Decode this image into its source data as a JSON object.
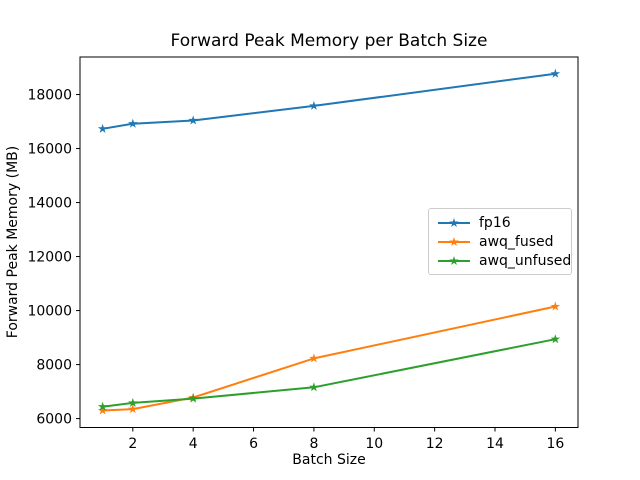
{
  "chart_data": {
    "type": "line",
    "title": "Forward Peak Memory per Batch Size",
    "xlabel": "Batch Size",
    "ylabel": "Forward Peak Memory (MB)",
    "x": [
      1,
      2,
      4,
      8,
      16
    ],
    "series": [
      {
        "name": "fp16",
        "color": "#1f77b4",
        "marker": "star",
        "values": [
          16730,
          16920,
          17040,
          17580,
          18770
        ]
      },
      {
        "name": "awq_fused",
        "color": "#ff7f0e",
        "marker": "star",
        "values": [
          6300,
          6350,
          6780,
          8230,
          10150
        ]
      },
      {
        "name": "awq_unfused",
        "color": "#2ca02c",
        "marker": "star",
        "values": [
          6440,
          6580,
          6740,
          7160,
          8940
        ]
      }
    ],
    "xticks": [
      2,
      4,
      6,
      8,
      10,
      12,
      14,
      16
    ],
    "yticks": [
      6000,
      8000,
      10000,
      12000,
      14000,
      16000,
      18000
    ],
    "xlim": [
      0.25,
      16.75
    ],
    "ylim": [
      5670,
      19390
    ],
    "grid": false,
    "legend_position": "center right",
    "axis_color": "#000000",
    "background_color": "#ffffff"
  }
}
